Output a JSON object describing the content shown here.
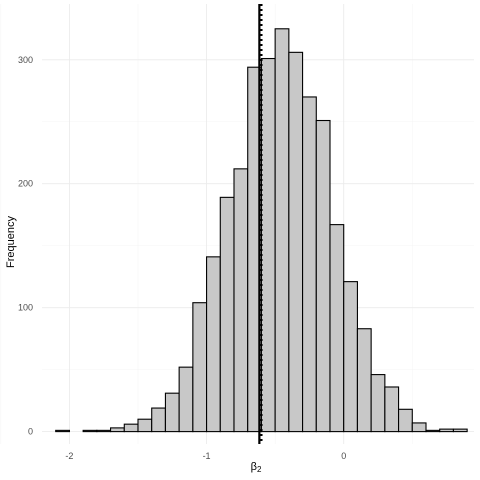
{
  "chart_data": {
    "type": "bar",
    "title": "",
    "xlabel": "β2",
    "xlabel_base": "β",
    "xlabel_sub": "2",
    "ylabel": "Frequency",
    "xlim": [
      -2.2,
      0.95
    ],
    "ylim": [
      -10,
      345
    ],
    "x_ticks": [
      -2,
      -1,
      0
    ],
    "x_tick_labels": [
      "-2",
      "-1",
      "0"
    ],
    "y_ticks": [
      0,
      100,
      200,
      300
    ],
    "y_tick_labels": [
      "0",
      "100",
      "200",
      "300"
    ],
    "bin_width": 0.1,
    "bin_start": -2.1,
    "values": [
      1,
      0,
      1,
      1,
      3,
      6,
      10,
      19,
      31,
      52,
      104,
      141,
      189,
      212,
      294,
      301,
      325,
      306,
      270,
      251,
      167,
      121,
      83,
      46,
      36,
      18,
      7,
      1,
      2,
      2
    ],
    "vlines": [
      {
        "x": -0.615,
        "style": "solid"
      },
      {
        "x": -0.6,
        "style": "dotted"
      }
    ],
    "grid": true,
    "legend": "none"
  }
}
